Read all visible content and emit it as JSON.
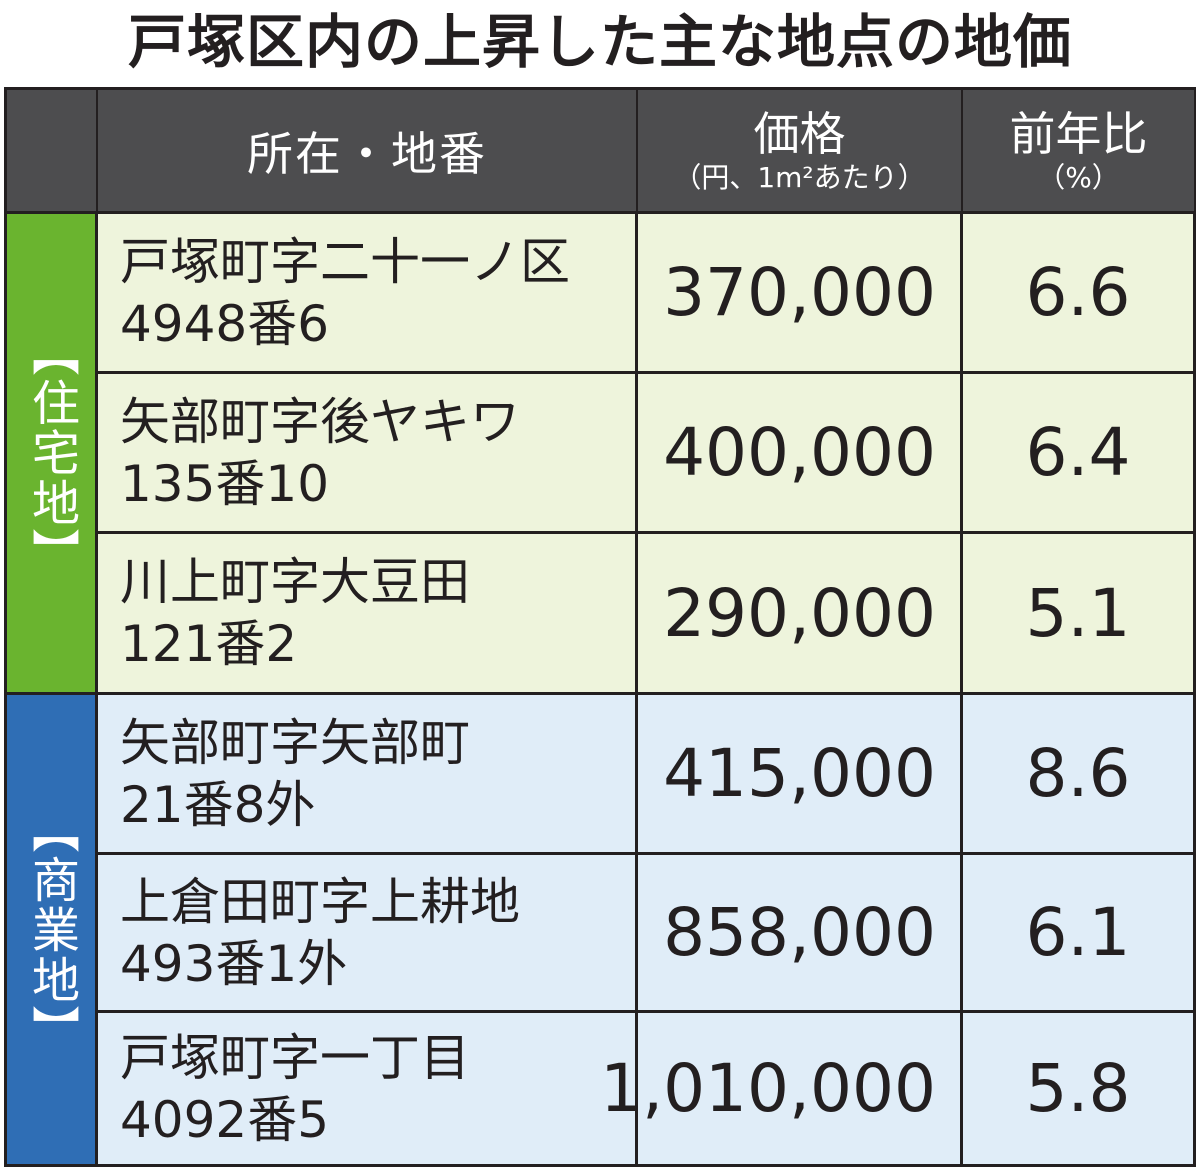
{
  "title": "戸塚区内の上昇した主な地点の地価",
  "headers": {
    "address": "所在・地番",
    "price": "価格",
    "price_unit": "（円、1m²あたり）",
    "change": "前年比",
    "change_unit": "（%）"
  },
  "categories": {
    "residential": "【住宅地】",
    "commercial": "【商業地】"
  },
  "chart_data": {
    "type": "table",
    "title": "戸塚区内の上昇した主な地点の地価",
    "columns": [
      "所在・地番",
      "価格（円、1m²あたり）",
      "前年比（%）"
    ],
    "rows": [
      {
        "category": "住宅地",
        "address_line1": "戸塚町字二十一ノ区",
        "address_line2": "4948番6",
        "price": "370,000",
        "change": "6.6"
      },
      {
        "category": "住宅地",
        "address_line1": "矢部町字後ヤキワ",
        "address_line2": "135番10",
        "price": "400,000",
        "change": "6.4"
      },
      {
        "category": "住宅地",
        "address_line1": "川上町字大豆田",
        "address_line2": "121番2",
        "price": "290,000",
        "change": "5.1"
      },
      {
        "category": "商業地",
        "address_line1": "矢部町字矢部町",
        "address_line2": "21番8外",
        "price": "415,000",
        "change": "8.6"
      },
      {
        "category": "商業地",
        "address_line1": "上倉田町字上耕地",
        "address_line2": "493番1外",
        "price": "858,000",
        "change": "6.1"
      },
      {
        "category": "商業地",
        "address_line1": "戸塚町字一丁目",
        "address_line2": "4092番5",
        "price": "1,010,000",
        "change": "5.8"
      }
    ]
  },
  "colors": {
    "header_bg": "#4d4d4f",
    "residential_label": "#6ab42f",
    "residential_row": "#eef4dc",
    "commercial_label": "#2f6eb5",
    "commercial_row": "#e0edf8"
  }
}
